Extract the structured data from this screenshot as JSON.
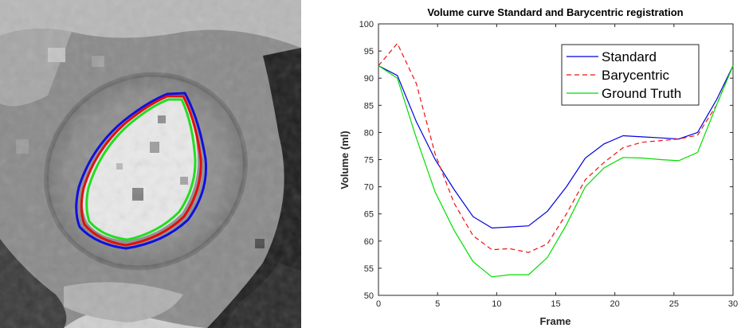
{
  "panels": {
    "left": {
      "kind": "cardiac MRI short-axis slice with contour overlays",
      "contour_colors": [
        "#1010dd",
        "#e01010",
        "#22dd22"
      ]
    }
  },
  "chart_data": {
    "type": "line",
    "title": "Volume curve Standard and Barycentric registration",
    "xlabel": "Frame",
    "ylabel": "Volume (ml)",
    "xlim": [
      0,
      30
    ],
    "ylim": [
      50,
      100
    ],
    "xticks": [
      "0",
      "5",
      "10",
      "15",
      "20",
      "25",
      "30"
    ],
    "yticks": [
      "50",
      "55",
      "60",
      "65",
      "70",
      "75",
      "80",
      "85",
      "90",
      "95",
      "100"
    ],
    "grid": false,
    "legend_position": "top-right",
    "x": [
      0,
      1.6,
      3.2,
      4.8,
      6.4,
      8,
      9.6,
      11.1,
      12.7,
      14.3,
      15.9,
      17.5,
      19.1,
      20.7,
      22.3,
      23.9,
      25.4,
      27,
      28.6,
      30
    ],
    "series": [
      {
        "name": "Standard",
        "color": "#0000dd",
        "dash": "solid",
        "values": [
          92.3,
          90.5,
          82.0,
          75.0,
          69.5,
          64.5,
          62.4,
          62.6,
          62.8,
          65.5,
          70.0,
          75.3,
          77.9,
          79.4,
          79.2,
          79.0,
          78.8,
          80.0,
          86.0,
          92.3
        ]
      },
      {
        "name": "Barycentric",
        "color": "#ee1111",
        "dash": "dashed",
        "values": [
          92.3,
          96.4,
          89.0,
          76.0,
          67.0,
          61.0,
          58.4,
          58.6,
          57.9,
          59.5,
          65.0,
          71.3,
          74.5,
          77.2,
          78.2,
          78.5,
          78.8,
          79.5,
          85.0,
          92.3
        ]
      },
      {
        "name": "Ground Truth",
        "color": "#00dd00",
        "dash": "solid",
        "values": [
          92.3,
          90.0,
          79.0,
          69.0,
          62.0,
          56.2,
          53.4,
          53.8,
          53.8,
          57.0,
          63.0,
          70.0,
          73.5,
          75.4,
          75.3,
          75.0,
          74.8,
          76.3,
          85.0,
          92.3
        ]
      }
    ]
  }
}
